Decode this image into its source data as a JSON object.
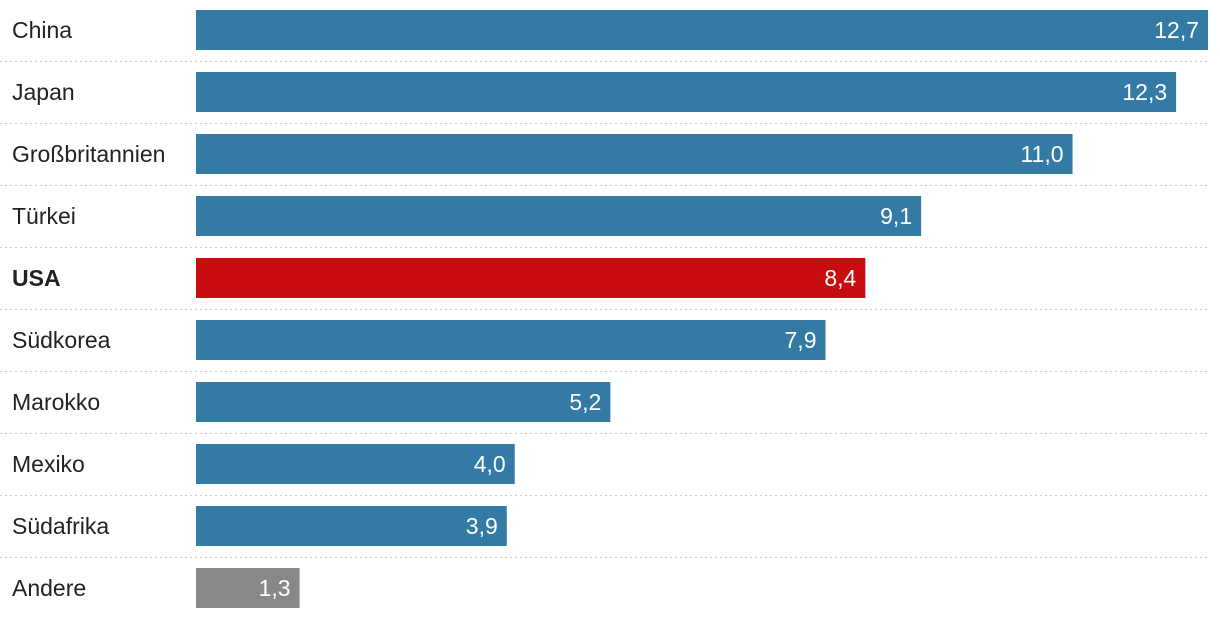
{
  "chart_data": {
    "type": "bar",
    "orientation": "horizontal",
    "categories": [
      "China",
      "Japan",
      "Großbritannien",
      "Türkei",
      "USA",
      "Südkorea",
      "Marokko",
      "Mexiko",
      "Südafrika",
      "Andere"
    ],
    "values": [
      12.7,
      12.3,
      11.0,
      9.1,
      8.4,
      7.9,
      5.2,
      4.0,
      3.9,
      1.3
    ],
    "value_labels": [
      "12,7",
      "12,3",
      "11,0",
      "9,1",
      "8,4",
      "7,9",
      "5,2",
      "4,0",
      "3,9",
      "1,3"
    ],
    "highlight": "USA",
    "xlim": [
      0,
      12.7
    ],
    "title": "",
    "xlabel": "",
    "ylabel": "",
    "colors": {
      "default": "#337ba4",
      "highlight": "#c80c0f",
      "other": "#888888"
    }
  }
}
